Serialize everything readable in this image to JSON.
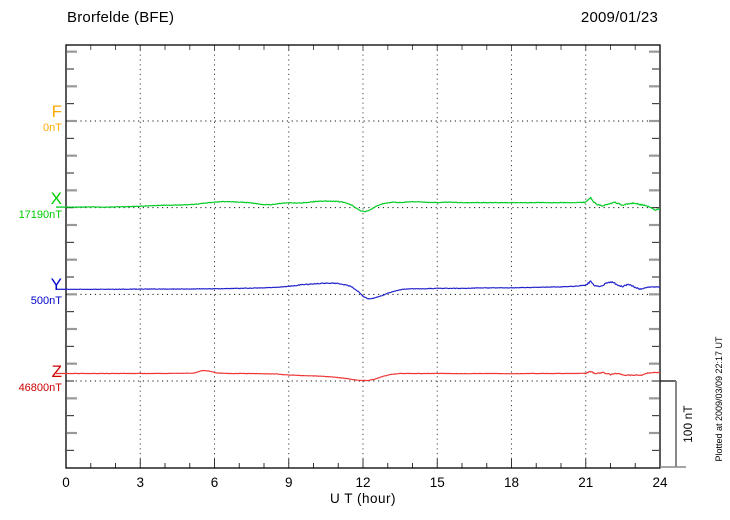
{
  "header": {
    "station": "Brorfelde (BFE)",
    "date": "2009/01/23"
  },
  "axis": {
    "x_label": "U T (hour)",
    "x_ticks": [
      "0",
      "3",
      "6",
      "9",
      "12",
      "15",
      "18",
      "21",
      "24"
    ]
  },
  "scale_bar": {
    "label": "100 nT"
  },
  "watermark": {
    "plotted_at": "Plotted at 2009/03/09 22:17 UT"
  },
  "channels": [
    {
      "id": "F",
      "letter": "F",
      "base_label": "0nT",
      "color": "#ffaa00"
    },
    {
      "id": "X",
      "letter": "X",
      "base_label": "17190nT",
      "color": "#00cc00"
    },
    {
      "id": "Y",
      "letter": "Y",
      "base_label": "500nT",
      "color": "#0000cc"
    },
    {
      "id": "Z",
      "letter": "Z",
      "base_label": "46800nT",
      "color": "#cc0000"
    }
  ],
  "chart_data": {
    "type": "line",
    "title": "Brorfelde (BFE) magnetogram 2009/01/23",
    "xlabel": "U T (hour)",
    "x_range_hours": [
      0,
      24
    ],
    "x_tick_hours": [
      0,
      3,
      6,
      9,
      12,
      15,
      18,
      21,
      24
    ],
    "y_scale_nT_per_division": 100,
    "y_tick_nT": 20,
    "grid": "dotted",
    "legend_position": "left-margin",
    "series": [
      {
        "name": "F",
        "baseline_nT": 0,
        "color": "#ffaa00",
        "trace_color": "#ffaa00",
        "points_hour_deltaNT": []
      },
      {
        "name": "X",
        "baseline_nT": 17190,
        "color": "#00cc00",
        "trace_color": "#00cc22",
        "points_hour_deltaNT": [
          [
            0,
            0.6
          ],
          [
            0.5,
            0.6
          ],
          [
            1,
            0.9
          ],
          [
            1.5,
            0.6
          ],
          [
            2,
            0.9
          ],
          [
            2.5,
            1.2
          ],
          [
            3,
            1.7
          ],
          [
            3.5,
            2.3
          ],
          [
            4,
            2.9
          ],
          [
            4.5,
            2.9
          ],
          [
            5,
            3.5
          ],
          [
            5.3,
            4.1
          ],
          [
            5.6,
            5.2
          ],
          [
            6,
            6.4
          ],
          [
            6.3,
            7
          ],
          [
            6.6,
            7
          ],
          [
            7,
            6.4
          ],
          [
            7.4,
            5.8
          ],
          [
            7.7,
            4.6
          ],
          [
            8,
            3.5
          ],
          [
            8.3,
            3.5
          ],
          [
            8.6,
            4.6
          ],
          [
            9,
            5.8
          ],
          [
            9.3,
            5.2
          ],
          [
            9.6,
            5.8
          ],
          [
            10,
            6.9
          ],
          [
            10.3,
            7.5
          ],
          [
            10.7,
            7.5
          ],
          [
            11,
            6.9
          ],
          [
            11.3,
            5.8
          ],
          [
            11.5,
            3.5
          ],
          [
            11.7,
            0
          ],
          [
            11.9,
            -3.5
          ],
          [
            12.1,
            -4.6
          ],
          [
            12.3,
            -2.3
          ],
          [
            12.5,
            1.2
          ],
          [
            12.8,
            4.6
          ],
          [
            13.2,
            6.4
          ],
          [
            13.5,
            5.8
          ],
          [
            14,
            6.9
          ],
          [
            14.5,
            6.4
          ],
          [
            15,
            5.8
          ],
          [
            15.5,
            6.4
          ],
          [
            16,
            5.8
          ],
          [
            16.5,
            5.8
          ],
          [
            17,
            5.8
          ],
          [
            17.5,
            5.8
          ],
          [
            18,
            5.8
          ],
          [
            18.5,
            5.8
          ],
          [
            19,
            5.8
          ],
          [
            19.5,
            5.8
          ],
          [
            20,
            5.8
          ],
          [
            20.5,
            5.8
          ],
          [
            21,
            6.4
          ],
          [
            21.2,
            11.5
          ],
          [
            21.35,
            5.8
          ],
          [
            21.5,
            2.9
          ],
          [
            21.7,
            2.3
          ],
          [
            22,
            4.6
          ],
          [
            22.2,
            5.8
          ],
          [
            22.5,
            2.9
          ],
          [
            22.8,
            5.2
          ],
          [
            23.1,
            4.6
          ],
          [
            23.4,
            2.3
          ],
          [
            23.6,
            0.6
          ],
          [
            23.8,
            -2.9
          ],
          [
            23.95,
            -1.2
          ],
          [
            24,
            -1.7
          ]
        ]
      },
      {
        "name": "Y",
        "baseline_nT": 500,
        "color": "#0000cc",
        "trace_color": "#2424cc",
        "points_hour_deltaNT": [
          [
            0,
            5.8
          ],
          [
            1,
            5.8
          ],
          [
            2,
            5.8
          ],
          [
            3,
            6.1
          ],
          [
            4,
            6.1
          ],
          [
            5,
            6.1
          ],
          [
            5.5,
            6.4
          ],
          [
            6,
            6.4
          ],
          [
            6.5,
            6.6
          ],
          [
            7,
            6.9
          ],
          [
            7.5,
            7.2
          ],
          [
            8,
            7.5
          ],
          [
            8.5,
            8.1
          ],
          [
            9,
            9.2
          ],
          [
            9.5,
            10.9
          ],
          [
            10,
            12.1
          ],
          [
            10.4,
            12.7
          ],
          [
            10.8,
            12.7
          ],
          [
            11,
            12.7
          ],
          [
            11.2,
            11.5
          ],
          [
            11.5,
            9.2
          ],
          [
            11.8,
            3.5
          ],
          [
            12,
            -2.3
          ],
          [
            12.2,
            -5.2
          ],
          [
            12.4,
            -4.6
          ],
          [
            12.6,
            -2.9
          ],
          [
            12.8,
            -1.2
          ],
          [
            13,
            1.2
          ],
          [
            13.3,
            4
          ],
          [
            13.6,
            5.8
          ],
          [
            14,
            6.4
          ],
          [
            14.5,
            6.4
          ],
          [
            15,
            6.9
          ],
          [
            15.5,
            6.9
          ],
          [
            16,
            6.9
          ],
          [
            16.5,
            7.2
          ],
          [
            17,
            7.5
          ],
          [
            17.5,
            7.5
          ],
          [
            18,
            7.5
          ],
          [
            18.5,
            7.8
          ],
          [
            19,
            8.1
          ],
          [
            19.5,
            8.4
          ],
          [
            20,
            8.7
          ],
          [
            20.5,
            9.2
          ],
          [
            21,
            10.4
          ],
          [
            21.2,
            15
          ],
          [
            21.35,
            10.4
          ],
          [
            21.6,
            9.2
          ],
          [
            21.9,
            13.8
          ],
          [
            22.1,
            13.8
          ],
          [
            22.3,
            10.4
          ],
          [
            22.5,
            9.2
          ],
          [
            22.7,
            11.5
          ],
          [
            23,
            8.1
          ],
          [
            23.2,
            5.8
          ],
          [
            23.5,
            8.1
          ],
          [
            23.8,
            8.7
          ],
          [
            24,
            8.1
          ]
        ]
      },
      {
        "name": "Z",
        "baseline_nT": 46800,
        "color": "#cc0000",
        "trace_color": "#ee3636",
        "points_hour_deltaNT": [
          [
            0,
            8.7
          ],
          [
            1,
            8.7
          ],
          [
            2,
            8.7
          ],
          [
            3,
            8.7
          ],
          [
            4,
            8.7
          ],
          [
            4.8,
            9
          ],
          [
            5.2,
            9.2
          ],
          [
            5.5,
            12.1
          ],
          [
            5.8,
            11.5
          ],
          [
            6.1,
            9.2
          ],
          [
            6.5,
            8.7
          ],
          [
            7,
            8.7
          ],
          [
            7.5,
            8.7
          ],
          [
            8,
            8.4
          ],
          [
            8.5,
            8.1
          ],
          [
            9,
            6.9
          ],
          [
            9.5,
            6.4
          ],
          [
            10,
            5.8
          ],
          [
            10.5,
            5.2
          ],
          [
            11,
            4
          ],
          [
            11.3,
            2.9
          ],
          [
            11.6,
            1.7
          ],
          [
            11.9,
            0.6
          ],
          [
            12.2,
            0.6
          ],
          [
            12.5,
            2.3
          ],
          [
            12.8,
            5.2
          ],
          [
            13.1,
            7.5
          ],
          [
            13.5,
            8.7
          ],
          [
            14,
            8.7
          ],
          [
            15,
            8.7
          ],
          [
            16,
            8.4
          ],
          [
            17,
            8.7
          ],
          [
            18,
            8.4
          ],
          [
            19,
            8.7
          ],
          [
            20,
            8.7
          ],
          [
            20.6,
            8.7
          ],
          [
            21,
            9
          ],
          [
            21.2,
            11
          ],
          [
            21.4,
            8.1
          ],
          [
            21.7,
            9.8
          ],
          [
            22,
            7.5
          ],
          [
            22.3,
            8.7
          ],
          [
            22.6,
            6.4
          ],
          [
            22.9,
            6.9
          ],
          [
            23.2,
            6.4
          ],
          [
            23.5,
            9.2
          ],
          [
            23.8,
            9.8
          ],
          [
            24,
            9.8
          ]
        ]
      }
    ]
  }
}
